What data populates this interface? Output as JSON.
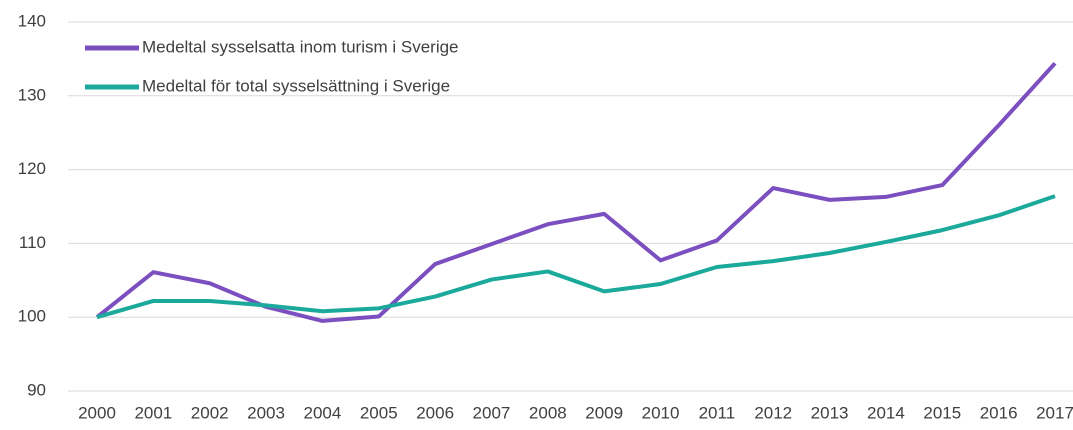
{
  "chart_data": {
    "type": "line",
    "categories": [
      "2000",
      "2001",
      "2002",
      "2003",
      "2004",
      "2005",
      "2006",
      "2007",
      "2008",
      "2009",
      "2010",
      "2011",
      "2012",
      "2013",
      "2014",
      "2015",
      "2016",
      "2017"
    ],
    "series": [
      {
        "name": "Medeltal sysselsatta inom turism i Sverige",
        "color": "#7b4fbf",
        "values": [
          100,
          106.1,
          104.6,
          101.4,
          99.5,
          100.1,
          107.2,
          109.9,
          112.6,
          114.0,
          107.7,
          110.4,
          117.5,
          115.9,
          116.3,
          117.9,
          126.0,
          134.4
        ]
      },
      {
        "name": "Medeltal för total sysselsättning i Sverige",
        "color": "#1aa99b",
        "values": [
          100,
          102.2,
          102.2,
          101.6,
          100.8,
          101.2,
          102.8,
          105.1,
          106.2,
          103.5,
          104.5,
          106.8,
          107.6,
          108.7,
          110.2,
          111.8,
          113.8,
          116.4
        ]
      }
    ],
    "ylim": [
      90,
      140
    ],
    "yticks": [
      90,
      100,
      110,
      120,
      130,
      140
    ],
    "grid": true,
    "legend": "top-left"
  }
}
